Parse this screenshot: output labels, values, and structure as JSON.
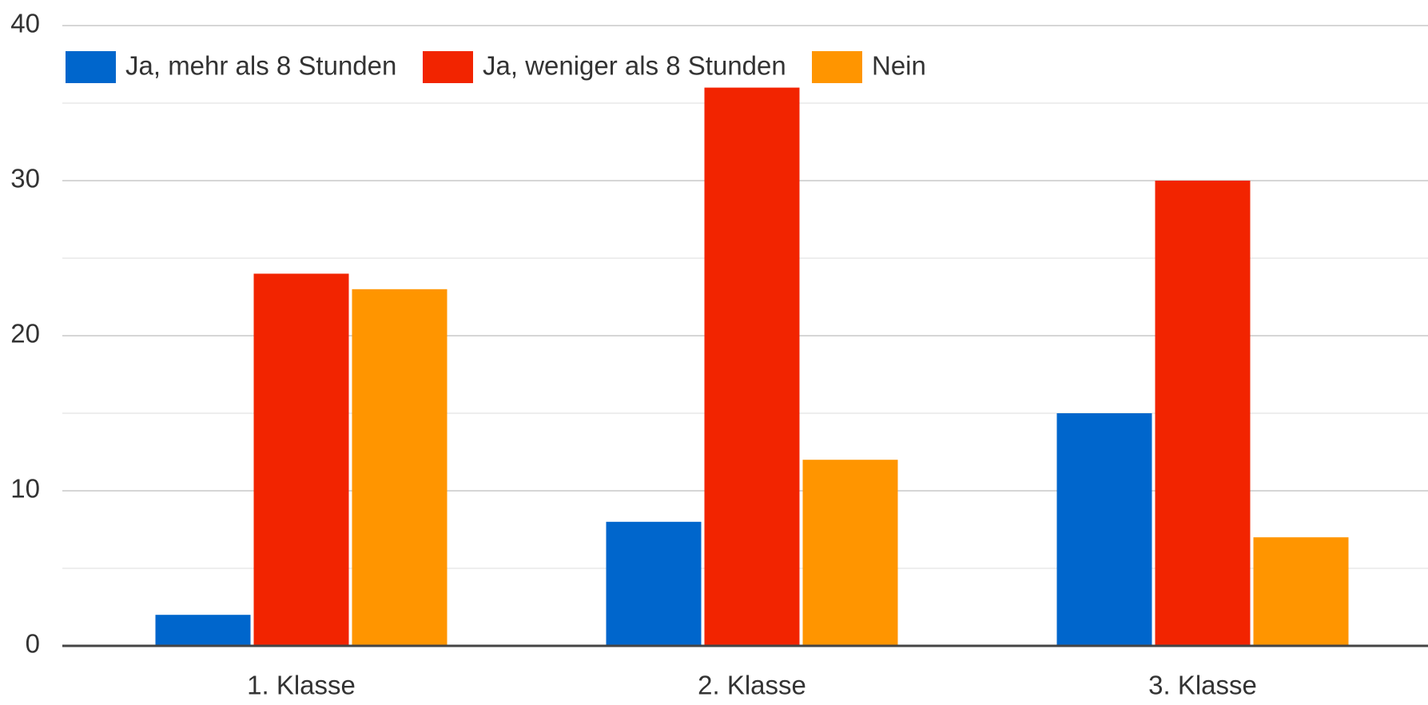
{
  "chart_data": {
    "type": "bar",
    "categories": [
      "1. Klasse",
      "2. Klasse",
      "3. Klasse"
    ],
    "series": [
      {
        "name": "Ja, mehr als 8 Stunden",
        "color": "#0066cc",
        "values": [
          2,
          8,
          15
        ]
      },
      {
        "name": "Ja, weniger als 8 Stunden",
        "color": "#f22400",
        "values": [
          24,
          36,
          30
        ]
      },
      {
        "name": "Nein",
        "color": "#ff9500",
        "values": [
          23,
          12,
          7
        ]
      }
    ],
    "ylim": [
      0,
      40
    ],
    "yticks": [
      0,
      10,
      20,
      30,
      40
    ],
    "minor_gridlines": [
      5,
      15,
      25,
      35
    ],
    "grid": true,
    "legend": "top"
  }
}
